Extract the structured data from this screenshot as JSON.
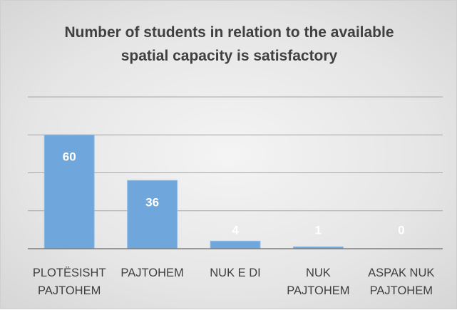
{
  "chart_data": {
    "type": "bar",
    "title": "Number of students in relation to the available spatial capacity is satisfactory",
    "categories": [
      "PLOTËSISHT PAJTOHEM",
      "PAJTOHEM",
      "NUK E DI",
      "NUK PAJTOHEM",
      "ASPAK NUK PAJTOHEM"
    ],
    "values": [
      60,
      36,
      4,
      1,
      0
    ],
    "color": "#6fa6dc",
    "ylim": [
      0,
      80
    ],
    "yticks": [
      0,
      20,
      40,
      60,
      80
    ],
    "grid": true
  }
}
